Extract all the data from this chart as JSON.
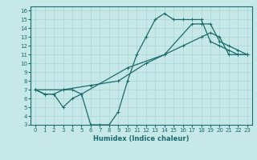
{
  "xlabel": "Humidex (Indice chaleur)",
  "xlim": [
    -0.5,
    23.5
  ],
  "ylim": [
    3,
    16.5
  ],
  "xticks": [
    0,
    1,
    2,
    3,
    4,
    5,
    6,
    7,
    8,
    9,
    10,
    11,
    12,
    13,
    14,
    15,
    16,
    17,
    18,
    19,
    20,
    21,
    22,
    23
  ],
  "yticks": [
    3,
    4,
    5,
    6,
    7,
    8,
    9,
    10,
    11,
    12,
    13,
    14,
    15,
    16
  ],
  "bg_color": "#c6e8e8",
  "line_color": "#1a6b6b",
  "grid_color": "#b0d8d8",
  "line1_x": [
    0,
    1,
    2,
    3,
    4,
    5,
    6,
    7,
    8,
    9,
    10,
    11,
    12,
    13,
    14,
    15,
    16,
    17,
    18,
    19,
    20,
    21,
    22,
    23
  ],
  "line1_y": [
    7,
    6.5,
    6.5,
    5,
    6,
    6.5,
    3,
    3,
    3,
    4.5,
    8,
    11,
    13,
    15,
    15.7,
    15,
    15,
    15,
    15,
    12.5,
    12,
    11.5,
    11,
    11
  ],
  "line2_x": [
    0,
    3,
    6,
    9,
    12,
    14,
    16,
    18,
    19,
    20,
    21,
    22,
    23
  ],
  "line2_y": [
    7,
    7,
    7.5,
    8,
    10,
    11,
    12,
    13,
    13.5,
    13,
    11,
    11,
    11
  ],
  "line3_x": [
    0,
    1,
    2,
    3,
    4,
    5,
    10,
    14,
    17,
    18,
    19,
    20,
    21,
    22,
    23
  ],
  "line3_y": [
    7,
    6.5,
    6.5,
    7,
    7,
    6.5,
    9.5,
    11,
    14.5,
    14.5,
    14.5,
    12.5,
    12,
    11.5,
    11
  ]
}
